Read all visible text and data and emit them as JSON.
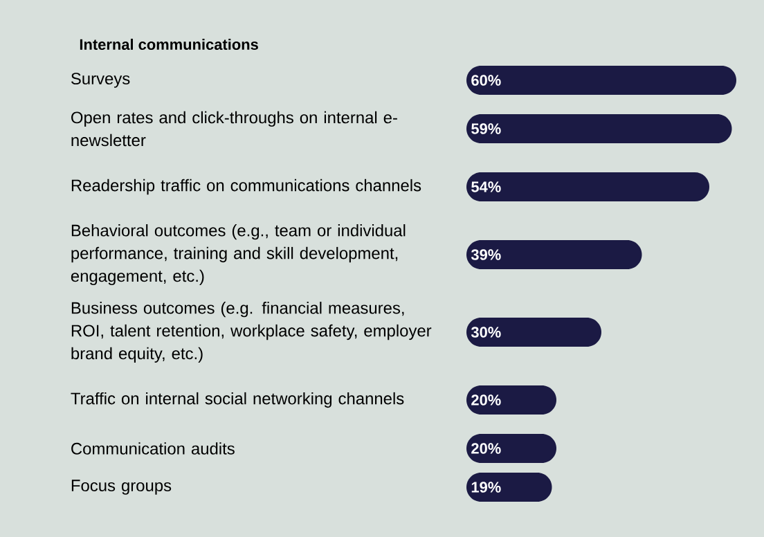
{
  "chart_data": {
    "type": "bar",
    "orientation": "horizontal",
    "title": "Internal communications",
    "categories": [
      "Surveys",
      "Open rates and click-throughs on internal e-newsletter",
      "Readership traffic on communications channels",
      "Behavioral outcomes (e.g., team or individual performance, training and skill development, engagement, etc.)",
      "Business outcomes (e.g. financial measures, ROI, talent retention, workplace safety, employer brand equity, etc.)",
      "Traffic on internal social networking channels",
      "Communication audits",
      "Focus groups"
    ],
    "values": [
      60,
      59,
      54,
      39,
      30,
      20,
      20,
      19
    ],
    "value_labels": [
      "60%",
      "59%",
      "54%",
      "39%",
      "30%",
      "20%",
      "20%",
      "19%"
    ],
    "color": "#1b1a44",
    "tick_labels": "y"
  }
}
